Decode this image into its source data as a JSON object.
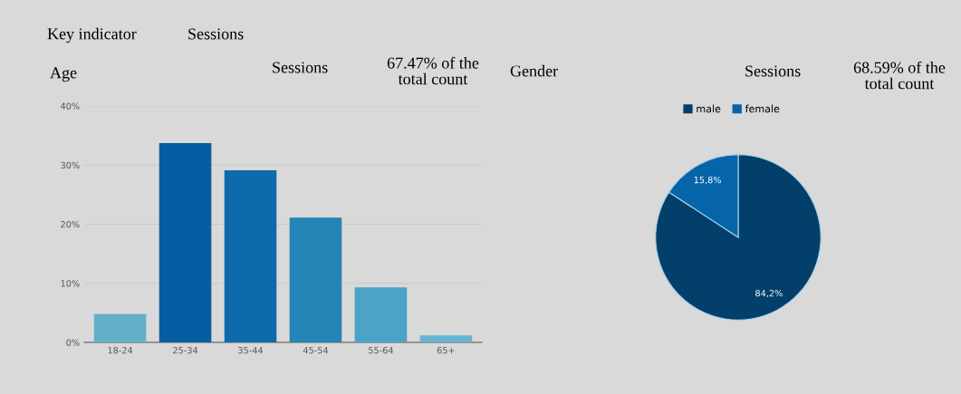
{
  "chart_data": [
    {
      "type": "bar",
      "title": "Age",
      "categories": [
        "18-24",
        "25-34",
        "35-44",
        "45-54",
        "55-64",
        "65+"
      ],
      "values": [
        4.8,
        33.7,
        29.1,
        21.1,
        9.3,
        1.2
      ],
      "colors": [
        "#62afca",
        "#045ea1",
        "#0e6aaa",
        "#2484b6",
        "#4ba3c7",
        "#6ab4d2"
      ],
      "ylim": [
        0,
        40
      ],
      "yticks": [
        {
          "value": 0,
          "label": "0%"
        },
        {
          "value": 10,
          "label": "10%"
        },
        {
          "value": 20,
          "label": "20%"
        },
        {
          "value": 30,
          "label": "30%"
        },
        {
          "value": 40,
          "label": "40%"
        }
      ],
      "grid": "y",
      "annotations": [
        "Key indicator",
        "Sessions",
        "Sessions",
        "67.47% of the\ntotal count"
      ]
    },
    {
      "type": "pie",
      "title": "Gender",
      "categories": [
        "male",
        "female"
      ],
      "values": [
        84.2,
        15.8
      ],
      "value_labels": [
        "84,2%",
        "15,8%"
      ],
      "colors": [
        "#023f6b",
        "#0664a8"
      ],
      "legend": "top",
      "annotations": [
        "Sessions",
        "68.59% of the\ntotal count"
      ]
    }
  ]
}
